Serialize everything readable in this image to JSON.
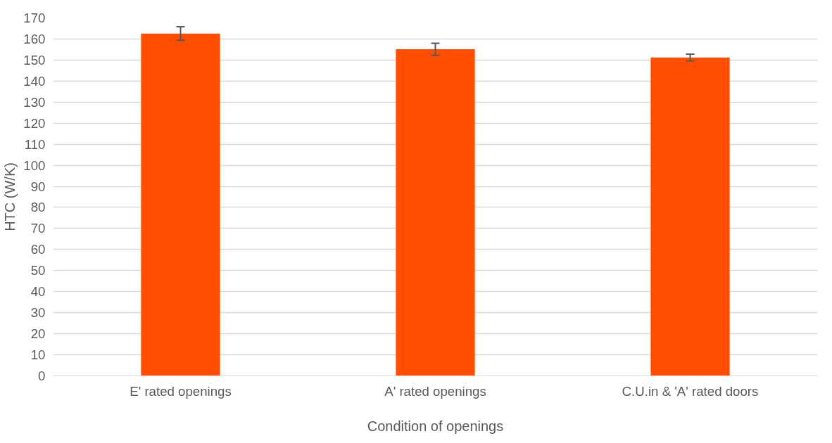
{
  "chart_data": {
    "type": "bar",
    "xlabel": "Condition of openings",
    "ylabel": "HTC (W/K)",
    "categories": [
      "E' rated openings",
      "A' rated openings",
      "C.U.in & 'A' rated doors"
    ],
    "values": [
      162.6,
      155.1,
      151.2
    ],
    "errors": [
      3.2,
      2.9,
      1.6
    ],
    "color": "#ff4e00",
    "ylim": [
      0,
      170
    ],
    "yticks": [
      0,
      10,
      20,
      30,
      40,
      50,
      60,
      70,
      80,
      90,
      100,
      110,
      120,
      130,
      140,
      150,
      160,
      170
    ],
    "grid": "y"
  }
}
